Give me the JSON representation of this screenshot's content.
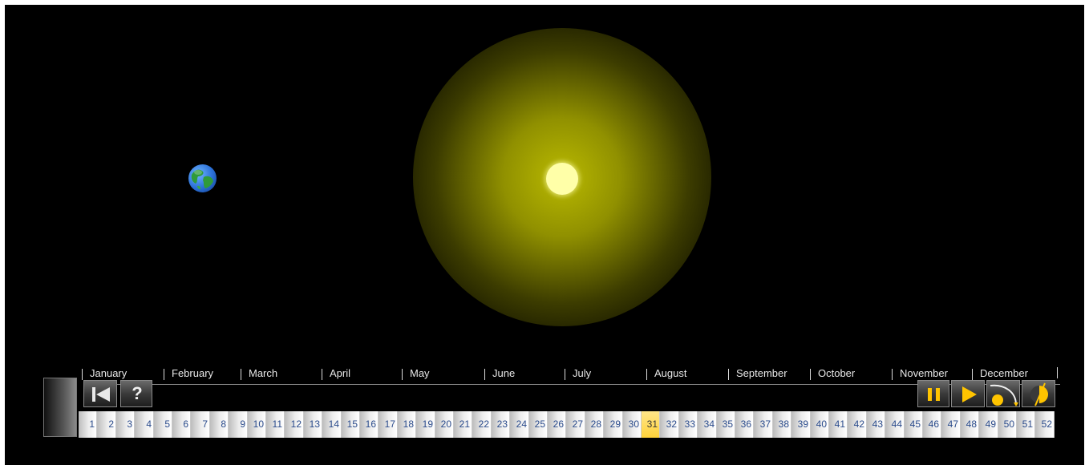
{
  "simulation": {
    "months": [
      "January",
      "February",
      "March",
      "April",
      "May",
      "June",
      "July",
      "August",
      "September",
      "October",
      "November",
      "December"
    ],
    "weeks": [
      "1",
      "2",
      "3",
      "4",
      "5",
      "6",
      "7",
      "8",
      "9",
      "10",
      "11",
      "12",
      "13",
      "14",
      "15",
      "16",
      "17",
      "18",
      "19",
      "20",
      "21",
      "22",
      "23",
      "24",
      "25",
      "26",
      "27",
      "28",
      "29",
      "30",
      "31",
      "32",
      "33",
      "34",
      "35",
      "36",
      "37",
      "38",
      "39",
      "40",
      "41",
      "42",
      "43",
      "44",
      "45",
      "46",
      "47",
      "48",
      "49",
      "50",
      "51",
      "52"
    ],
    "selected_week": "31"
  },
  "controls": {
    "reset_icon": "skip-to-start-icon",
    "help_label": "?",
    "pause_icon": "pause-icon",
    "play_icon": "play-icon",
    "orbit_view_icon": "orbit-view-icon",
    "phase_view_icon": "phase-view-icon"
  },
  "colors": {
    "background": "#000000",
    "sun": "#ffffa8",
    "sun_glow": "#b9b900",
    "accent": "#f5b800",
    "week_text": "#2a4b8c",
    "selected_week": "#ffd23a"
  }
}
